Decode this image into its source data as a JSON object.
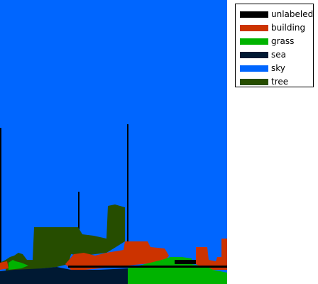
{
  "figure": {
    "description_classes": "semantic segmentation label map"
  },
  "legend": {
    "items": [
      {
        "label": "unlabeled",
        "color": "#000000"
      },
      {
        "label": "building",
        "color": "#cc3300"
      },
      {
        "label": "grass",
        "color": "#00b300"
      },
      {
        "label": "sea",
        "color": "#001933"
      },
      {
        "label": "sky",
        "color": "#0066ff"
      },
      {
        "label": "tree",
        "color": "#264d00"
      }
    ]
  }
}
